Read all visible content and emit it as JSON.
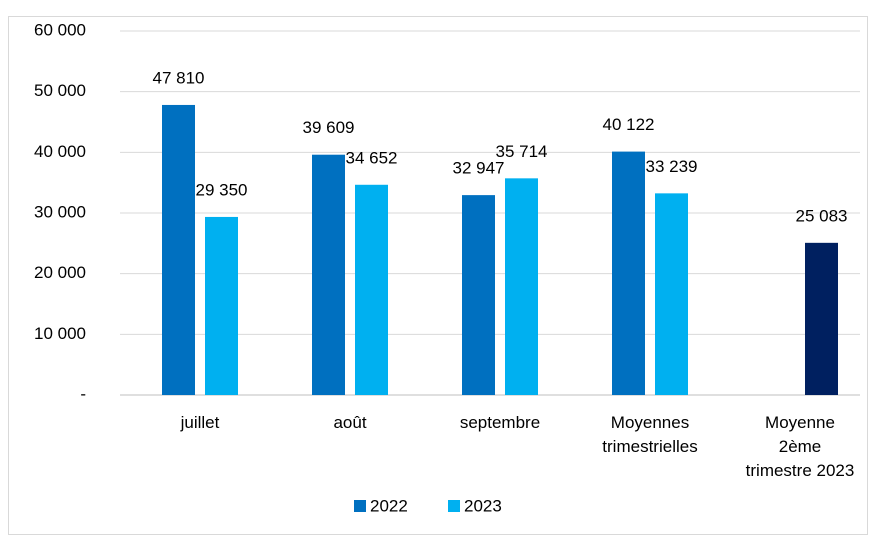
{
  "chart_data": {
    "type": "bar",
    "categories": [
      "juillet",
      "août",
      "septembre",
      "Moyennes\ntrimestrielles",
      "Moyenne\n2ème\ntrimestre 2023"
    ],
    "series": [
      {
        "name": "2022",
        "color": "#0070c0",
        "values": [
          47810,
          39609,
          32947,
          40122,
          null
        ],
        "value_labels": [
          "47 810",
          "39 609",
          "32 947",
          "40 122",
          null
        ]
      },
      {
        "name": "2023",
        "color": "#00b0f0",
        "colors": [
          "#00b0f0",
          "#00b0f0",
          "#00b0f0",
          "#00b0f0",
          "#002060"
        ],
        "values": [
          29350,
          34652,
          35714,
          33239,
          25083
        ],
        "value_labels": [
          "29 350",
          "34 652",
          "35 714",
          "33 239",
          "25 083"
        ]
      }
    ],
    "ylim": [
      0,
      60000
    ],
    "yticks": [
      {
        "value": 0,
        "label": "-"
      },
      {
        "value": 10000,
        "label": "10 000"
      },
      {
        "value": 20000,
        "label": "20 000"
      },
      {
        "value": 30000,
        "label": "30 000"
      },
      {
        "value": 40000,
        "label": "40 000"
      },
      {
        "value": 50000,
        "label": "50 000"
      },
      {
        "value": 60000,
        "label": "60 000"
      }
    ],
    "grid": true,
    "legend": "bottom"
  }
}
